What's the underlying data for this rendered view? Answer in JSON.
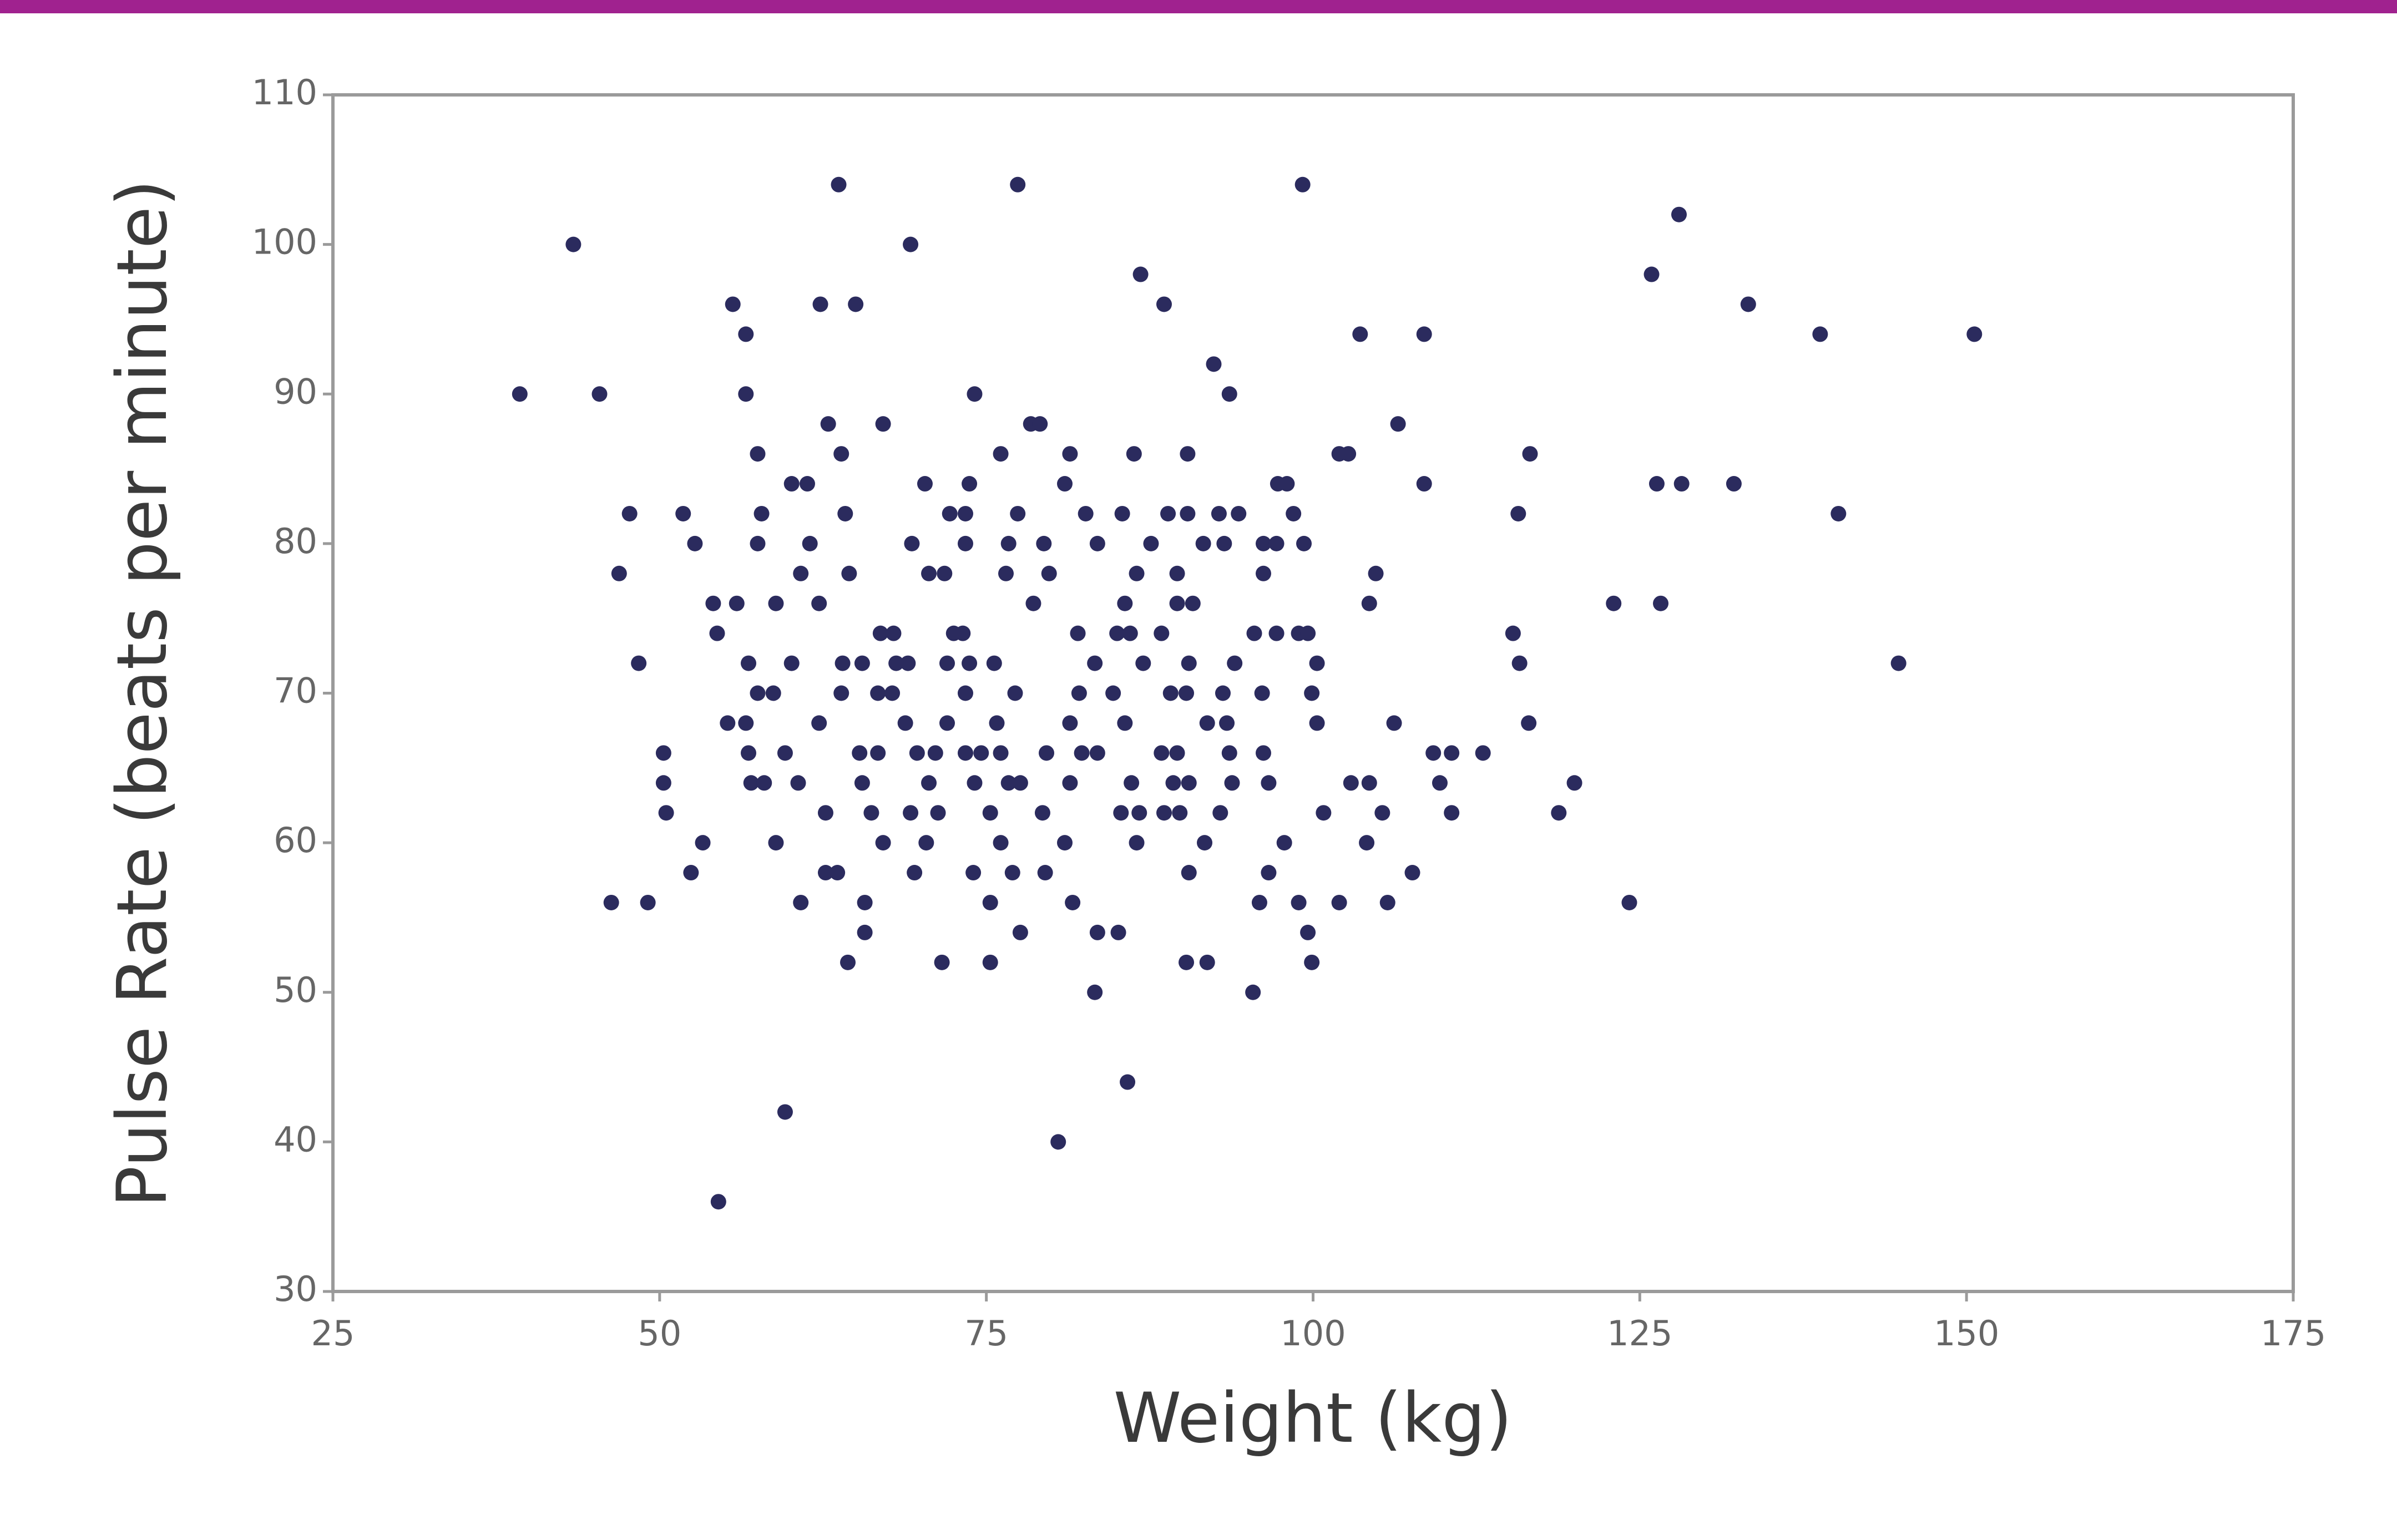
{
  "chart_data": {
    "type": "scatter",
    "xlabel": "Weight (kg)",
    "ylabel": "Pulse Rate (beats per minute)",
    "xlim": [
      25,
      175
    ],
    "xticks": [
      25,
      50,
      75,
      100,
      125,
      150,
      175
    ],
    "ylim": [
      30,
      110
    ],
    "yticks": [
      30,
      40,
      50,
      60,
      70,
      80,
      90,
      100,
      110
    ],
    "color": "#2b2b5e",
    "x": [
      39.3,
      45.4,
      56.6,
      74.1,
      93.6,
      43.4,
      69.2,
      63.7,
      77.4,
      99.2,
      128,
      55.6,
      62.3,
      65,
      88.6,
      133.3,
      86.8,
      125.9,
      56.6,
      103.6,
      108.5,
      138.8,
      150.6,
      92.4,
      62.9,
      67.1,
      78.4,
      79.1,
      106.5,
      57.5,
      63.9,
      76.1,
      81.4,
      86.3,
      90.4,
      102,
      102.7,
      116.6,
      60.1,
      61.3,
      70.3,
      73.7,
      81,
      97.3,
      98,
      108.5,
      126.3,
      128.2,
      132.2,
      47.7,
      51.8,
      57.8,
      64.2,
      72.2,
      73.4,
      77.4,
      82.6,
      85.4,
      88.9,
      90.4,
      92.8,
      94.3,
      98.5,
      115.7,
      140.2,
      52.7,
      57.5,
      61.5,
      69.3,
      73.4,
      76.7,
      79.4,
      83.5,
      87.6,
      91.6,
      93.2,
      96.2,
      97.2,
      99.3,
      46.9,
      60.8,
      64.5,
      70.6,
      71.8,
      76.5,
      79.8,
      86.5,
      89.6,
      96.2,
      104.8,
      54.1,
      55.9,
      58.9,
      62.2,
      78.6,
      85.6,
      89.6,
      90.8,
      104.3,
      123,
      126.6,
      54.4,
      66.9,
      67.9,
      72.5,
      73.2,
      82,
      85,
      86,
      88.4,
      95.5,
      97.2,
      98.9,
      99.6,
      115.3,
      48.4,
      56.8,
      60.1,
      64,
      65.5,
      68.1,
      69,
      72,
      73.7,
      75.6,
      83.3,
      87,
      90.5,
      94,
      100.3,
      115.8,
      144.8,
      57.5,
      58.7,
      63.9,
      66.7,
      67.8,
      73.4,
      77.2,
      82.1,
      84.7,
      89.1,
      90.3,
      93.1,
      96.1,
      99.9,
      55.2,
      56.6,
      62.2,
      68.8,
      72,
      75.8,
      81.4,
      85.6,
      91.9,
      93.4,
      100.3,
      106.2,
      116.5,
      50.3,
      56.8,
      59.6,
      65.3,
      66.7,
      69.7,
      71.1,
      73.4,
      74.6,
      76.1,
      79.6,
      82.3,
      83.5,
      88.4,
      89.6,
      93.6,
      96.2,
      109.2,
      110.6,
      113,
      50.3,
      57,
      58,
      60.6,
      65.5,
      70.6,
      74.1,
      76.7,
      77.6,
      81.4,
      86.1,
      89.3,
      90.5,
      93.8,
      96.6,
      102.9,
      104.3,
      109.7,
      120,
      50.5,
      62.7,
      66.2,
      69.2,
      71.3,
      75.3,
      79.3,
      85.3,
      86.7,
      88.6,
      89.8,
      92.9,
      100.8,
      105.3,
      110.6,
      118.8,
      53.3,
      58.9,
      67.1,
      70.4,
      76.1,
      81,
      86.5,
      91.7,
      97.8,
      104.1,
      52.4,
      62.7,
      63.6,
      69.5,
      74,
      77,
      79.5,
      90.5,
      96.6,
      107.6,
      46.3,
      49.1,
      60.8,
      65.7,
      75.3,
      81.6,
      95.9,
      98.9,
      102,
      105.7,
      124.2,
      65.7,
      77.6,
      83.5,
      85.1,
      99.6,
      64.4,
      71.6,
      75.3,
      90.3,
      91.9,
      99.9,
      83.3,
      95.4,
      85.8,
      59.6,
      80.5,
      54.5
    ],
    "values": [
      90,
      90,
      90,
      90,
      90,
      100,
      100,
      104,
      104,
      104,
      102,
      96,
      96,
      96,
      96,
      96,
      98,
      98,
      94,
      94,
      94,
      94,
      94,
      92,
      88,
      88,
      88,
      88,
      88,
      86,
      86,
      86,
      86,
      86,
      86,
      86,
      86,
      86,
      84,
      84,
      84,
      84,
      84,
      84,
      84,
      84,
      84,
      84,
      84,
      82,
      82,
      82,
      82,
      82,
      82,
      82,
      82,
      82,
      82,
      82,
      82,
      82,
      82,
      82,
      82,
      80,
      80,
      80,
      80,
      80,
      80,
      80,
      80,
      80,
      80,
      80,
      80,
      80,
      80,
      78,
      78,
      78,
      78,
      78,
      78,
      78,
      78,
      78,
      78,
      78,
      76,
      76,
      76,
      76,
      76,
      76,
      76,
      76,
      76,
      76,
      76,
      74,
      74,
      74,
      74,
      74,
      74,
      74,
      74,
      74,
      74,
      74,
      74,
      74,
      74,
      72,
      72,
      72,
      72,
      72,
      72,
      72,
      72,
      72,
      72,
      72,
      72,
      72,
      72,
      72,
      72,
      72,
      70,
      70,
      70,
      70,
      70,
      70,
      70,
      70,
      70,
      70,
      70,
      70,
      70,
      70,
      68,
      68,
      68,
      68,
      68,
      68,
      68,
      68,
      68,
      68,
      68,
      68,
      68,
      66,
      66,
      66,
      66,
      66,
      66,
      66,
      66,
      66,
      66,
      66,
      66,
      66,
      66,
      66,
      66,
      66,
      66,
      66,
      66,
      64,
      64,
      64,
      64,
      64,
      64,
      64,
      64,
      64,
      64,
      64,
      64,
      64,
      64,
      64,
      64,
      64,
      64,
      64,
      62,
      62,
      62,
      62,
      62,
      62,
      62,
      62,
      62,
      62,
      62,
      62,
      62,
      62,
      62,
      62,
      60,
      60,
      60,
      60,
      60,
      60,
      60,
      60,
      60,
      60,
      58,
      58,
      58,
      58,
      58,
      58,
      58,
      58,
      58,
      58,
      56,
      56,
      56,
      56,
      56,
      56,
      56,
      56,
      56,
      56,
      56,
      54,
      54,
      54,
      54,
      54,
      52,
      52,
      52,
      52,
      52,
      52,
      50,
      50,
      44,
      42,
      40,
      36
    ]
  }
}
